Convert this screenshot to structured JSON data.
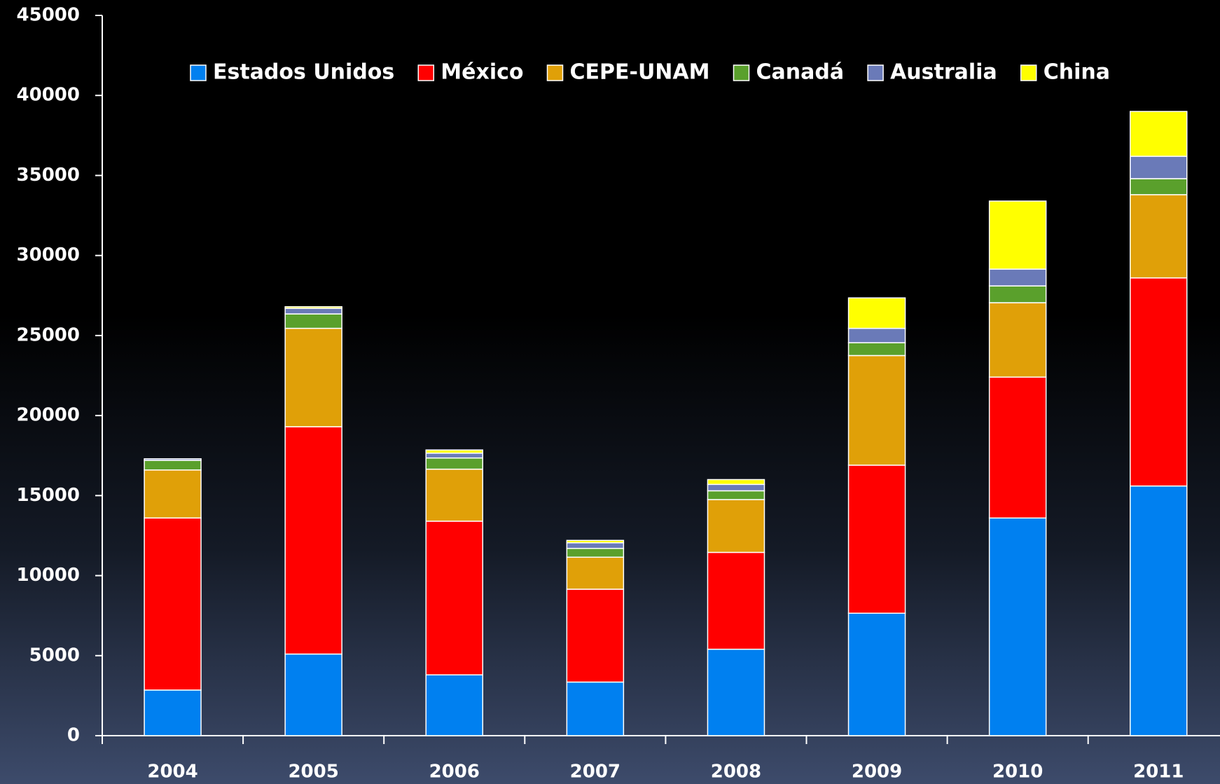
{
  "chart_data": {
    "type": "stacked_bar",
    "categories": [
      "2004",
      "2005",
      "2006",
      "2007",
      "2008",
      "2009",
      "2010",
      "2011"
    ],
    "series": [
      {
        "name": "Estados Unidos",
        "color": "#0080f0",
        "values": [
          2850,
          5100,
          3800,
          3350,
          5400,
          7650,
          13600,
          15600
        ]
      },
      {
        "name": "México",
        "color": "#ff0000",
        "values": [
          10750,
          14200,
          9600,
          5800,
          6050,
          9250,
          8800,
          13000
        ]
      },
      {
        "name": "CEPE-UNAM",
        "color": "#e0a008",
        "values": [
          3000,
          6150,
          3250,
          2000,
          3300,
          6850,
          4650,
          5200
        ]
      },
      {
        "name": "Canadá",
        "color": "#5aa02c",
        "values": [
          600,
          900,
          700,
          550,
          550,
          800,
          1050,
          1000
        ]
      },
      {
        "name": "Australia",
        "color": "#6a7ab8",
        "values": [
          100,
          350,
          300,
          350,
          400,
          900,
          1050,
          1400
        ]
      },
      {
        "name": "China",
        "color": "#ffff00",
        "values": [
          0,
          100,
          200,
          150,
          300,
          1900,
          4250,
          2800
        ]
      }
    ],
    "ylim": [
      0,
      45000
    ],
    "yticks": [
      0,
      5000,
      10000,
      15000,
      20000,
      25000,
      30000,
      35000,
      40000,
      45000
    ],
    "legend": "top"
  }
}
